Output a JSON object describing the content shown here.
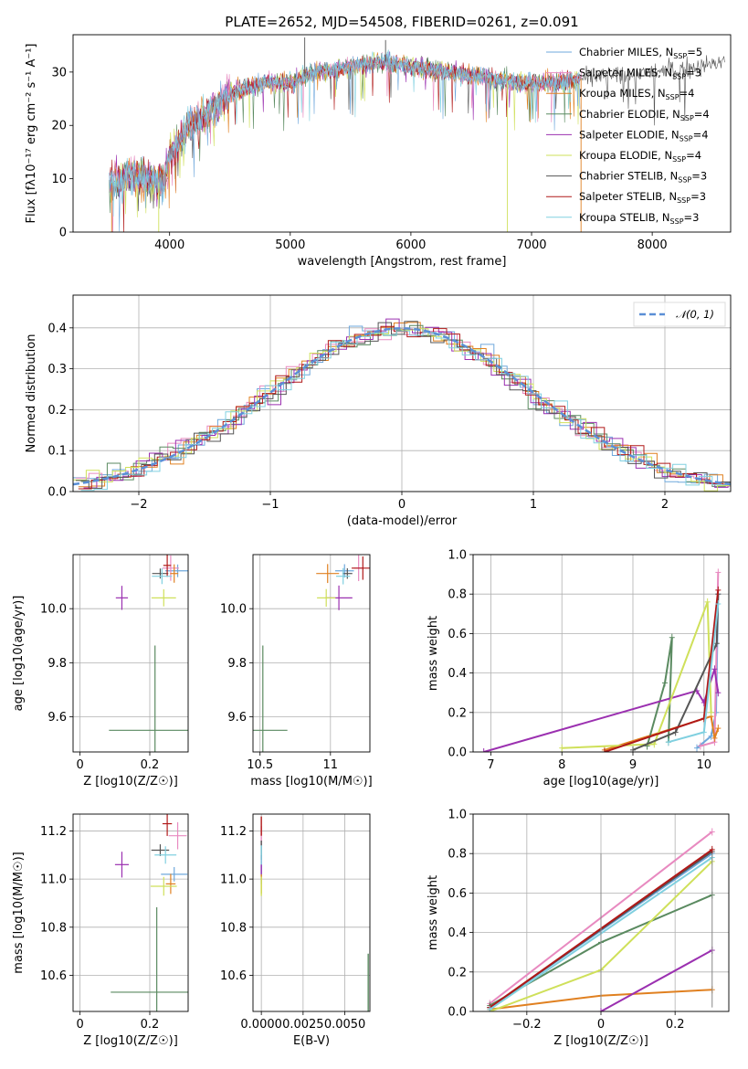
{
  "figure_title": "PLATE=2652, MJD=54508, FIBERID=0261, z=0.091",
  "legend": {
    "models": [
      {
        "name": "Chabrier MILES, N",
        "sub": "SSP",
        "tail": "=5",
        "color": "#6fa8dc"
      },
      {
        "name": "Salpeter MILES, N",
        "sub": "SSP",
        "tail": "=3",
        "color": "#e88ac0"
      },
      {
        "name": "Kroupa MILES, N",
        "sub": "SSP",
        "tail": "=4",
        "color": "#e08020"
      },
      {
        "name": "Chabrier ELODIE, N",
        "sub": "SSP",
        "tail": "=4",
        "color": "#5a8a60"
      },
      {
        "name": "Salpeter ELODIE, N",
        "sub": "SSP",
        "tail": "=4",
        "color": "#9b30b0"
      },
      {
        "name": "Kroupa ELODIE, N",
        "sub": "SSP",
        "tail": "=4",
        "color": "#cfe05a"
      },
      {
        "name": "Chabrier STELIB, N",
        "sub": "SSP",
        "tail": "=3",
        "color": "#555555"
      },
      {
        "name": "Salpeter STELIB, N",
        "sub": "SSP",
        "tail": "=3",
        "color": "#b01818"
      },
      {
        "name": "Kroupa STELIB, N",
        "sub": "SSP",
        "tail": "=3",
        "color": "#80d0e0"
      }
    ],
    "gaussian_label": "𝒩(0, 1)"
  },
  "chart_data": [
    {
      "type": "line",
      "xlabel": "wavelength [Angstrom, rest frame]",
      "ylabel": "Flux [fλ10⁻¹⁷ erg cm⁻² s⁻¹ A⁻¹]",
      "xlim": [
        3200,
        8650
      ],
      "ylim": [
        0,
        37
      ],
      "xticks": [
        4000,
        5000,
        6000,
        7000,
        8000
      ],
      "yticks": [
        0,
        10,
        20,
        30
      ],
      "spectrum_trend": {
        "x": [
          3500,
          3700,
          3950,
          4000,
          4150,
          4300,
          4500,
          4800,
          5000,
          5200,
          5500,
          5800,
          6000,
          6300,
          6600,
          6900,
          7200,
          7500,
          8000,
          8400,
          8600
        ],
        "y": [
          9,
          11,
          9,
          14,
          20,
          22,
          26,
          28,
          28,
          30,
          31,
          32,
          31,
          30,
          29,
          28,
          28,
          29,
          30,
          31,
          32
        ]
      }
    },
    {
      "type": "area",
      "xlabel": "(data-model)/error",
      "ylabel": "Normed distribution",
      "xlim": [
        -2.5,
        2.5
      ],
      "ylim": [
        0,
        0.48
      ],
      "xticks": [
        -2,
        -1,
        0,
        1,
        2
      ],
      "yticks": [
        0.0,
        0.1,
        0.2,
        0.3,
        0.4
      ],
      "gaussian": {
        "mean": 0,
        "sigma": 1
      }
    },
    {
      "type": "scatter",
      "xlabel": "Z [log10(Z/Z☉)]",
      "ylabel": "age  [log10(age/yr)]",
      "xlim": [
        -0.02,
        0.31
      ],
      "ylim": [
        9.47,
        10.2
      ],
      "xticks": [
        0.0,
        0.2
      ],
      "yticks": [
        9.6,
        9.8,
        10.0
      ],
      "points": [
        {
          "x": 0.28,
          "y": 10.14,
          "c": 0
        },
        {
          "x": 0.26,
          "y": 10.15,
          "c": 1
        },
        {
          "x": 0.27,
          "y": 10.13,
          "c": 2
        },
        {
          "x": 0.215,
          "y": 9.55,
          "c": 3
        },
        {
          "x": 0.12,
          "y": 10.04,
          "c": 4
        },
        {
          "x": 0.24,
          "y": 10.04,
          "c": 5
        },
        {
          "x": 0.23,
          "y": 10.13,
          "c": 6
        },
        {
          "x": 0.25,
          "y": 10.16,
          "c": 7
        },
        {
          "x": 0.235,
          "y": 10.12,
          "c": 8
        }
      ]
    },
    {
      "type": "scatter",
      "xlabel": "mass [log10(M/M☉)]",
      "ylabel": "",
      "xlim": [
        10.45,
        11.28
      ],
      "ylim": [
        9.47,
        10.2
      ],
      "xticks": [
        10.5,
        11.0
      ],
      "yticks": [
        9.6,
        9.8,
        10.0
      ],
      "points": [
        {
          "x": 11.1,
          "y": 10.14,
          "c": 0
        },
        {
          "x": 11.2,
          "y": 10.15,
          "c": 1
        },
        {
          "x": 10.98,
          "y": 10.13,
          "c": 2
        },
        {
          "x": 10.52,
          "y": 9.55,
          "c": 3
        },
        {
          "x": 11.06,
          "y": 10.04,
          "c": 4
        },
        {
          "x": 10.97,
          "y": 10.04,
          "c": 5
        },
        {
          "x": 11.12,
          "y": 10.13,
          "c": 6
        },
        {
          "x": 11.23,
          "y": 10.15,
          "c": 7
        },
        {
          "x": 11.09,
          "y": 10.12,
          "c": 8
        }
      ]
    },
    {
      "type": "line",
      "xlabel": "age  [log10(age/yr)]",
      "ylabel": "mass weight",
      "xlim": [
        6.75,
        10.35
      ],
      "ylim": [
        0,
        1.0
      ],
      "xticks": [
        7,
        8,
        9,
        10
      ],
      "yticks": [
        0.0,
        0.2,
        0.4,
        0.6,
        0.8,
        1.0
      ]
    },
    {
      "type": "scatter",
      "xlabel": "Z [log10(Z/Z☉)]",
      "ylabel": "mass [log10(M/M☉)]",
      "xlim": [
        -0.02,
        0.31
      ],
      "ylim": [
        10.45,
        11.27
      ],
      "xticks": [
        0.0,
        0.2
      ],
      "yticks": [
        10.6,
        10.8,
        11.0,
        11.2
      ],
      "points": [
        {
          "x": 0.27,
          "y": 11.02,
          "c": 0
        },
        {
          "x": 0.28,
          "y": 11.18,
          "c": 1
        },
        {
          "x": 0.26,
          "y": 10.98,
          "c": 2
        },
        {
          "x": 0.22,
          "y": 10.53,
          "c": 3
        },
        {
          "x": 0.12,
          "y": 11.06,
          "c": 4
        },
        {
          "x": 0.24,
          "y": 10.97,
          "c": 5
        },
        {
          "x": 0.23,
          "y": 11.12,
          "c": 6
        },
        {
          "x": 0.25,
          "y": 11.23,
          "c": 7
        },
        {
          "x": 0.245,
          "y": 11.1,
          "c": 8
        }
      ]
    },
    {
      "type": "scatter",
      "xlabel": "E(B-V)",
      "ylabel": "",
      "xlim": [
        -0.0005,
        0.0065
      ],
      "ylim": [
        10.45,
        11.27
      ],
      "xticks": [
        0.0,
        0.0025,
        0.005
      ],
      "xticklabels": [
        "0.0000",
        "0.0025",
        "0.0050"
      ],
      "yticks": [
        10.6,
        10.8,
        11.0,
        11.2
      ]
    },
    {
      "type": "line",
      "xlabel": "Z [log10(Z/Z☉)]",
      "ylabel": "mass weight",
      "xlim": [
        -0.345,
        0.345
      ],
      "ylim": [
        0,
        1.0
      ],
      "xticks": [
        -0.2,
        0.0,
        0.2
      ],
      "yticks": [
        0.0,
        0.2,
        0.4,
        0.6,
        0.8,
        1.0
      ]
    }
  ]
}
